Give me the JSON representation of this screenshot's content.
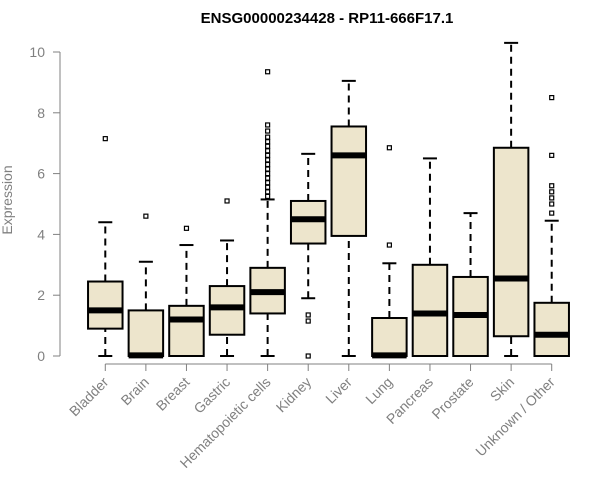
{
  "chart_data": {
    "type": "boxplot",
    "title": "ENSG00000234428 - RP11-666F17.1",
    "xlabel": "",
    "ylabel": "Expression",
    "ylim": [
      0,
      10
    ],
    "yticks": [
      0,
      2,
      4,
      6,
      8,
      10
    ],
    "box_fill": "#ede5cc",
    "line_color": "#000000",
    "axis_color": "#808080",
    "categories": [
      "Bladder",
      "Brain",
      "Breast",
      "Gastric",
      "Hematopoietic cells",
      "Kidney",
      "Liver",
      "Lung",
      "Pancreas",
      "Prostate",
      "Skin",
      "Unknown / Other"
    ],
    "boxes": [
      {
        "name": "Bladder",
        "min": 0.0,
        "q1": 0.9,
        "median": 1.5,
        "q3": 2.45,
        "max": 4.4,
        "outliers": [
          7.15
        ]
      },
      {
        "name": "Brain",
        "min": 0.0,
        "q1": 0.0,
        "median": 0.02,
        "q3": 1.5,
        "max": 3.1,
        "outliers": [
          4.6
        ]
      },
      {
        "name": "Breast",
        "min": 0.0,
        "q1": 0.0,
        "median": 1.2,
        "q3": 1.65,
        "max": 3.65,
        "outliers": [
          4.2
        ]
      },
      {
        "name": "Gastric",
        "min": 0.0,
        "q1": 0.7,
        "median": 1.6,
        "q3": 2.3,
        "max": 3.8,
        "outliers": [
          5.1
        ]
      },
      {
        "name": "Hematopoietic cells",
        "min": 0.0,
        "q1": 1.4,
        "median": 2.1,
        "q3": 2.9,
        "max": 5.15,
        "outliers": [
          5.25,
          5.4,
          5.55,
          5.7,
          5.85,
          6.0,
          6.15,
          6.3,
          6.45,
          6.6,
          6.75,
          6.9,
          7.05,
          7.2,
          7.4,
          7.6,
          9.35
        ]
      },
      {
        "name": "Kidney",
        "min": 1.9,
        "q1": 3.7,
        "median": 4.5,
        "q3": 5.1,
        "max": 6.65,
        "outliers": [
          0.0,
          1.15,
          1.35
        ]
      },
      {
        "name": "Liver",
        "min": 0.0,
        "q1": 3.95,
        "median": 6.6,
        "q3": 7.55,
        "max": 9.05,
        "outliers": []
      },
      {
        "name": "Lung",
        "min": 0.0,
        "q1": 0.0,
        "median": 0.02,
        "q3": 1.25,
        "max": 3.05,
        "outliers": [
          3.65,
          6.85
        ]
      },
      {
        "name": "Pancreas",
        "min": 0.0,
        "q1": 0.0,
        "median": 1.4,
        "q3": 3.0,
        "max": 6.5,
        "outliers": []
      },
      {
        "name": "Prostate",
        "min": 0.0,
        "q1": 0.0,
        "median": 1.35,
        "q3": 2.6,
        "max": 4.7,
        "outliers": []
      },
      {
        "name": "Skin",
        "min": 0.0,
        "q1": 0.65,
        "median": 2.55,
        "q3": 6.85,
        "max": 10.3,
        "outliers": []
      },
      {
        "name": "Unknown / Other",
        "min": 0.0,
        "q1": 0.0,
        "median": 0.7,
        "q3": 1.75,
        "max": 4.45,
        "outliers": [
          4.7,
          5.0,
          5.2,
          5.4,
          5.6,
          6.6,
          8.5
        ]
      }
    ]
  }
}
